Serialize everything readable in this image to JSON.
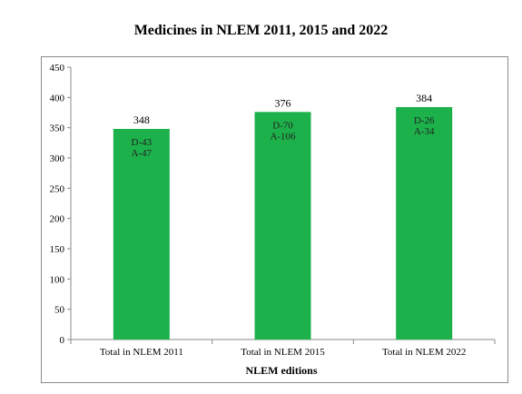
{
  "chart_data": {
    "type": "bar",
    "title": "Medicines in NLEM 2011, 2015 and 2022",
    "xlabel": "NLEM editions",
    "ylabel": "",
    "ylim": [
      0,
      450
    ],
    "yticks": [
      0,
      50,
      100,
      150,
      200,
      250,
      300,
      350,
      400,
      450
    ],
    "categories": [
      "Total in NLEM 2011",
      "Total in NLEM 2015",
      "Total in NLEM 2022"
    ],
    "values": [
      348,
      376,
      384
    ],
    "data_labels": [
      "348",
      "376",
      "384"
    ],
    "annotations": [
      [
        "D-43",
        "A-47"
      ],
      [
        "D-70",
        "A-106"
      ],
      [
        "D-26",
        "A-34"
      ]
    ],
    "bar_color": "#1db14b",
    "grid": false,
    "legend": "none"
  }
}
